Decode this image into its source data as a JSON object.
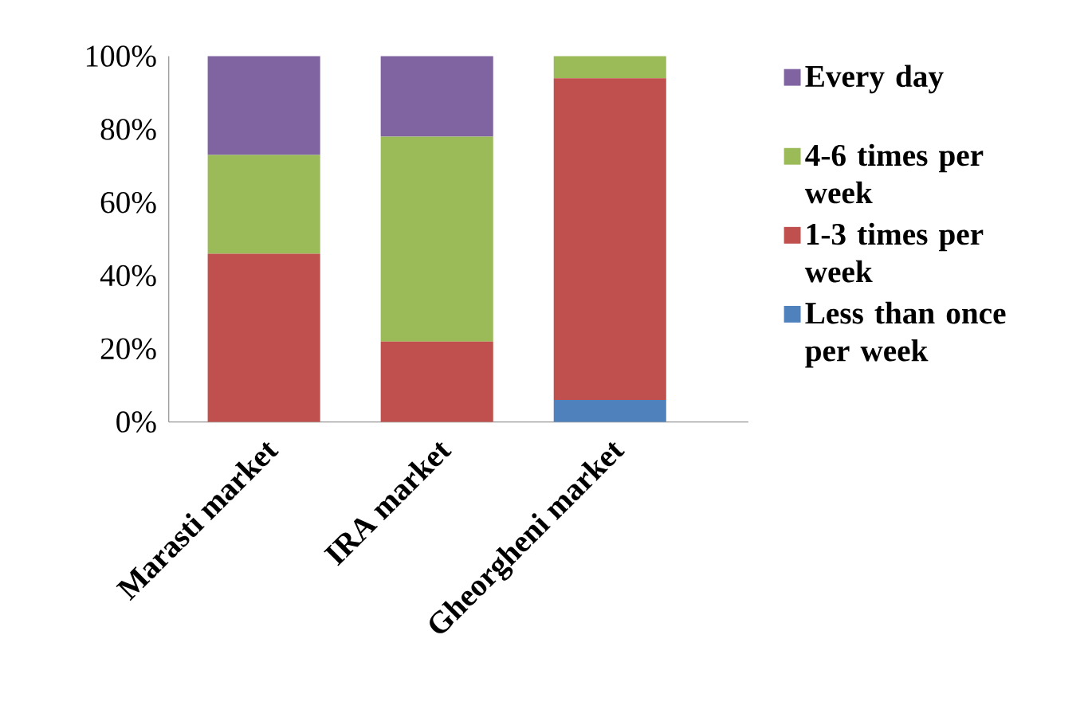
{
  "chart_data": {
    "type": "bar",
    "stacked": true,
    "categories": [
      "Marasti market",
      "IRA market",
      "Gheorgheni market"
    ],
    "series": [
      {
        "name": "Less than once per week",
        "color": "#4f81bd",
        "values": [
          0,
          0,
          6
        ]
      },
      {
        "name": "1-3 times per week",
        "color": "#c0504d",
        "values": [
          46,
          22,
          88
        ]
      },
      {
        "name": "4-6 times per week",
        "color": "#9bbb59",
        "values": [
          27,
          56,
          6
        ]
      },
      {
        "name": "Every day",
        "color": "#8064a2",
        "values": [
          27,
          22,
          0
        ]
      }
    ],
    "ylim": [
      0,
      100
    ],
    "yticks": [
      {
        "value": 0,
        "label": "0%"
      },
      {
        "value": 20,
        "label": "20%"
      },
      {
        "value": 40,
        "label": "40%"
      },
      {
        "value": 60,
        "label": "60%"
      },
      {
        "value": 80,
        "label": "80%"
      },
      {
        "value": 100,
        "label": "100%"
      }
    ],
    "grid": false,
    "legend": "right"
  }
}
